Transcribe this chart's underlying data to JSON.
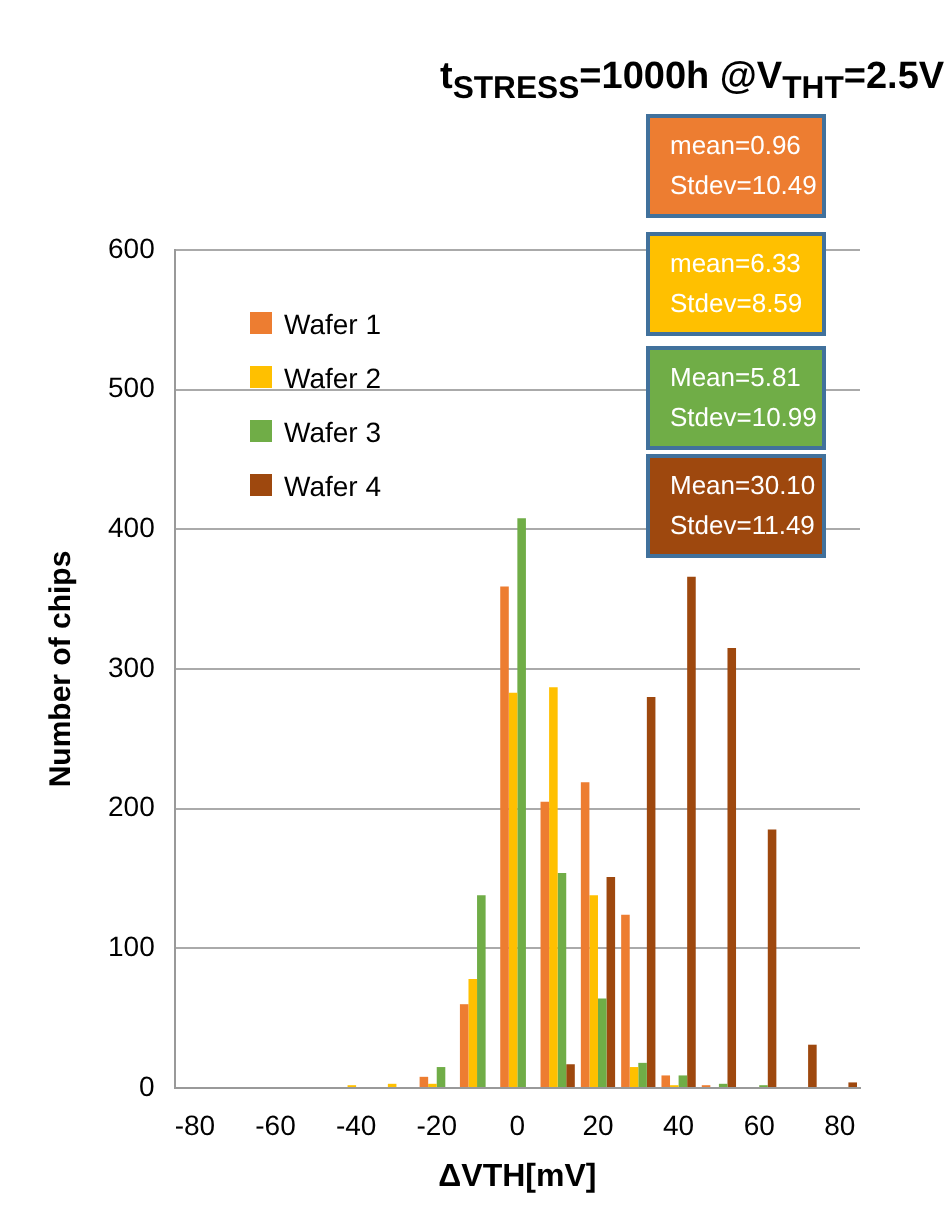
{
  "chart_data": {
    "type": "bar",
    "title": "t$_{STRESS}$=1000h @V$_{THT}$=2.5V",
    "xlabel": "ΔVTH[mV]",
    "ylabel": "Number of chips",
    "categories": [
      "-80",
      null,
      "-60",
      null,
      "-40",
      null,
      "-20",
      null,
      "0",
      null,
      "20",
      null,
      "40",
      null,
      "60",
      null,
      "80"
    ],
    "series": [
      {
        "name": "Wafer 1",
        "color": "#ed7d31",
        "values": [
          0,
          0,
          0,
          0,
          0,
          0,
          8,
          60,
          359,
          205,
          219,
          124,
          9,
          2,
          0,
          0,
          0
        ]
      },
      {
        "name": "Wafer 2",
        "color": "#ffc000",
        "values": [
          0,
          0,
          0,
          0,
          2,
          3,
          3,
          78,
          283,
          287,
          138,
          15,
          2,
          0,
          0,
          0,
          0
        ]
      },
      {
        "name": "Wafer 3",
        "color": "#70ad47",
        "values": [
          0,
          0,
          0,
          0,
          0,
          0,
          15,
          138,
          408,
          154,
          64,
          18,
          9,
          3,
          2,
          0,
          0
        ]
      },
      {
        "name": "Wafer 4",
        "color": "#9e480e",
        "values": [
          0,
          0,
          0,
          0,
          0,
          0,
          0,
          0,
          0,
          17,
          151,
          280,
          366,
          315,
          185,
          31,
          4
        ]
      }
    ],
    "ylim": [
      0,
      600
    ],
    "yticks": [
      0,
      100,
      200,
      300,
      400,
      500,
      600
    ],
    "grid": "y",
    "legend": "top left",
    "annotations": [
      "mean=0.96\nStdev=10.49",
      "mean=6.33\nStdev=8.59",
      "Mean=5.81\nStdev=10.99",
      "Mean=30.10\nStdev=11.49"
    ]
  }
}
